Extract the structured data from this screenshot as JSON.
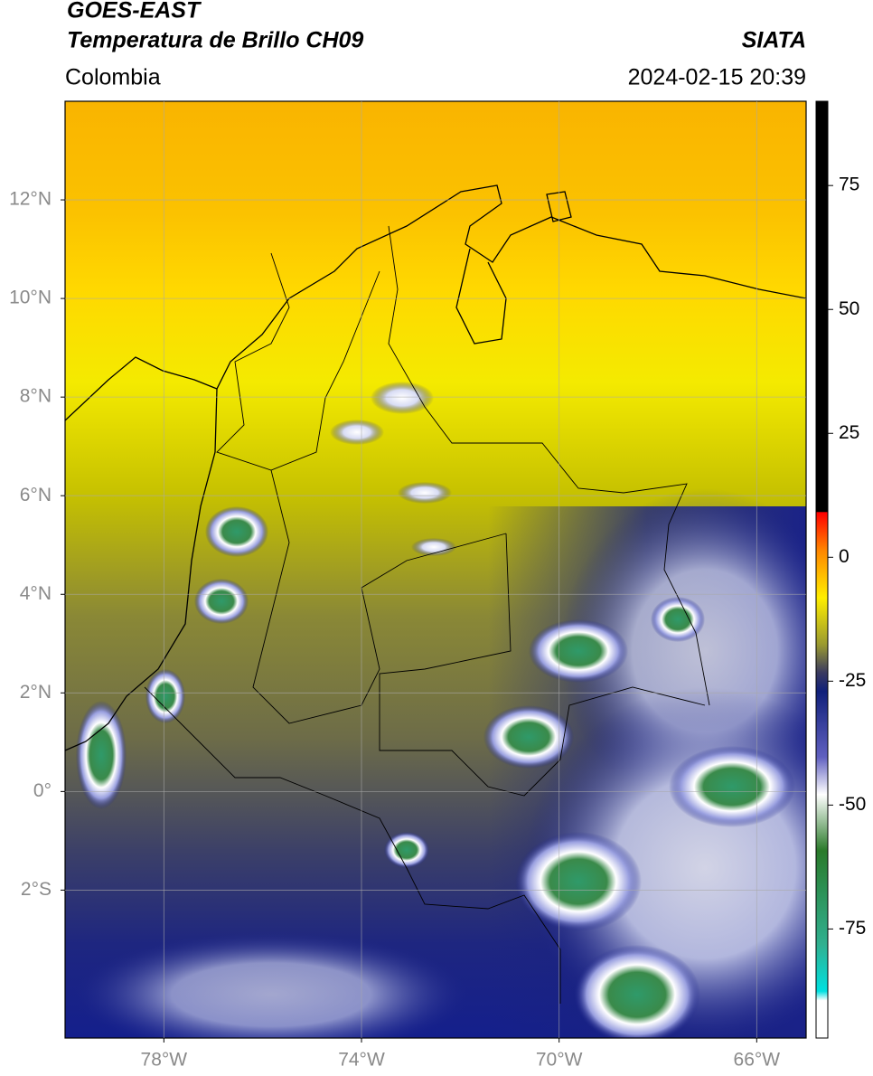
{
  "header": {
    "title": "GOES-EAST",
    "subtitle": "Temperatura de Brillo CH09",
    "source": "SIATA",
    "region": "Colombia",
    "datetime": "2024-02-15 20:39"
  },
  "map": {
    "xlim": [
      -80,
      -65
    ],
    "ylim": [
      -5,
      14
    ],
    "xticks": [
      {
        "value": -78,
        "label": "78°W"
      },
      {
        "value": -74,
        "label": "74°W"
      },
      {
        "value": -70,
        "label": "70°W"
      },
      {
        "value": -66,
        "label": "66°W"
      }
    ],
    "yticks": [
      {
        "value": 12,
        "label": "12°N"
      },
      {
        "value": 10,
        "label": "10°N"
      },
      {
        "value": 8,
        "label": "8°N"
      },
      {
        "value": 6,
        "label": "6°N"
      },
      {
        "value": 4,
        "label": "4°N"
      },
      {
        "value": 2,
        "label": "2°N"
      },
      {
        "value": 0,
        "label": "0°"
      },
      {
        "value": -2,
        "label": "2°S"
      }
    ],
    "grid": true
  },
  "colorbar": {
    "lim": [
      -97,
      92
    ],
    "ticks": [
      75,
      50,
      25,
      0,
      -25,
      -50,
      -75
    ]
  }
}
